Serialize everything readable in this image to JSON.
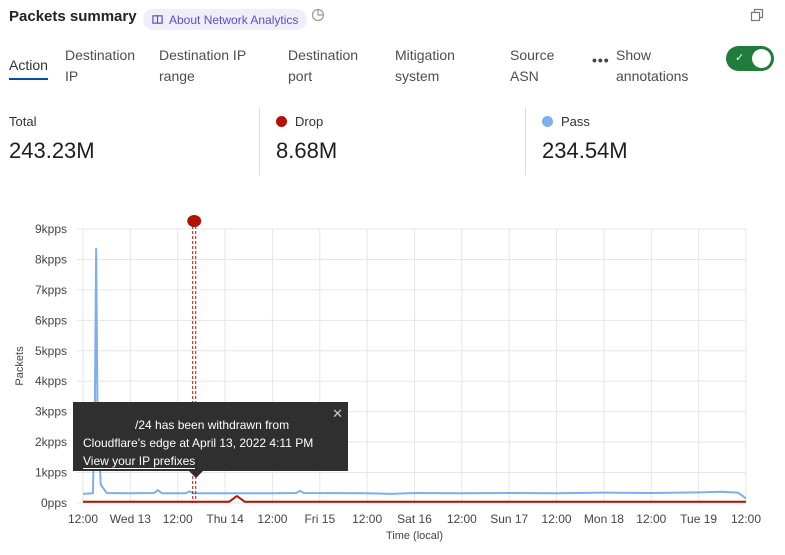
{
  "header": {
    "title": "Packets summary",
    "about_label": "About Network Analytics",
    "icons": [
      "book-icon",
      "history-icon",
      "copy-icon"
    ]
  },
  "tabs": [
    {
      "line1": "Action",
      "line2": "",
      "active": true
    },
    {
      "line1": "Destination",
      "line2": "IP"
    },
    {
      "line1": "Destination IP",
      "line2": "range"
    },
    {
      "line1": "Destination",
      "line2": "port"
    },
    {
      "line1": "Mitigation",
      "line2": "system"
    },
    {
      "line1": "Source",
      "line2": "ASN"
    }
  ],
  "more_label": "•••",
  "annotations_toggle": {
    "line1": "Show",
    "line2": "annotations",
    "on": true,
    "color": "#1f7d3b"
  },
  "stats": [
    {
      "label": "Total",
      "value": "243.23M"
    },
    {
      "label": "Drop",
      "value": "8.68M",
      "color": "#b31200"
    },
    {
      "label": "Pass",
      "value": "234.54M",
      "color": "#7eaef0"
    }
  ],
  "tooltip": {
    "line1": "/24 has been withdrawn from",
    "line2": "Cloudflare's edge at April 13, 2022 4:11 PM",
    "link": "View your IP prefixes",
    "close": "✕"
  },
  "chart_data": {
    "type": "line",
    "ylabel": "Packets",
    "xlabel": "Time (local)",
    "yticks": [
      "0pps",
      "1kpps",
      "2kpps",
      "3kpps",
      "4kpps",
      "5kpps",
      "6kpps",
      "7kpps",
      "8kpps",
      "9kpps"
    ],
    "ylim": [
      0,
      9000
    ],
    "xlim": [
      "2022-04-12T12:00",
      "2022-04-19T12:00"
    ],
    "xticks": [
      "12:00",
      "Wed 13",
      "12:00",
      "Thu 14",
      "12:00",
      "Fri 15",
      "12:00",
      "Sat 16",
      "12:00",
      "Sun 17",
      "12:00",
      "Mon 18",
      "12:00",
      "Tue 19",
      "12:00"
    ],
    "grid": true,
    "annotation": {
      "time": "2022-04-13T16:11",
      "color": "#b31200"
    },
    "series": [
      {
        "name": "Pass",
        "color": "#7eaef0",
        "points": [
          [
            "2022-04-12T12:00",
            300
          ],
          [
            "2022-04-12T14:30",
            320
          ],
          [
            "2022-04-12T15:00",
            3000
          ],
          [
            "2022-04-12T15:20",
            8350
          ],
          [
            "2022-04-12T15:40",
            3000
          ],
          [
            "2022-04-12T16:30",
            600
          ],
          [
            "2022-04-12T18:00",
            330
          ],
          [
            "2022-04-13T00:00",
            320
          ],
          [
            "2022-04-13T06:00",
            330
          ],
          [
            "2022-04-13T07:00",
            420
          ],
          [
            "2022-04-13T08:00",
            320
          ],
          [
            "2022-04-13T14:00",
            320
          ],
          [
            "2022-04-13T15:00",
            380
          ],
          [
            "2022-04-13T16:00",
            320
          ],
          [
            "2022-04-14T12:00",
            320
          ],
          [
            "2022-04-14T18:00",
            330
          ],
          [
            "2022-04-14T19:00",
            400
          ],
          [
            "2022-04-14T20:00",
            330
          ],
          [
            "2022-04-15T12:00",
            320
          ],
          [
            "2022-04-15T18:00",
            300
          ],
          [
            "2022-04-16T00:00",
            330
          ],
          [
            "2022-04-16T12:00",
            320
          ],
          [
            "2022-04-17T00:00",
            330
          ],
          [
            "2022-04-17T12:00",
            320
          ],
          [
            "2022-04-18T00:00",
            340
          ],
          [
            "2022-04-18T12:00",
            330
          ],
          [
            "2022-04-19T00:00",
            350
          ],
          [
            "2022-04-19T06:00",
            370
          ],
          [
            "2022-04-19T10:00",
            340
          ],
          [
            "2022-04-19T12:00",
            150
          ]
        ]
      },
      {
        "name": "Drop",
        "color": "#b31200",
        "points": [
          [
            "2022-04-12T12:00",
            40
          ],
          [
            "2022-04-14T01:00",
            40
          ],
          [
            "2022-04-14T03:00",
            230
          ],
          [
            "2022-04-14T05:00",
            40
          ],
          [
            "2022-04-19T12:00",
            40
          ]
        ]
      }
    ]
  }
}
